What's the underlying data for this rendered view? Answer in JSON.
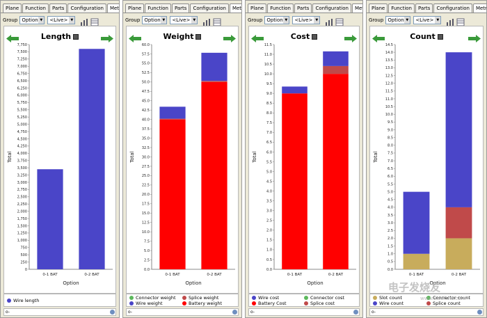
{
  "tabs": [
    "Plane",
    "Function",
    "Parts",
    "Configuration",
    "Metrics"
  ],
  "active_tab": "Metrics",
  "toolbar": {
    "group_label": "Group",
    "group_value": "Option",
    "live_value": "<Live>"
  },
  "search_placeholder": "o-",
  "colors": {
    "blue": "#4a45c8",
    "red": "#ff0000",
    "darkred": "#c04a4a",
    "gold": "#c8ac5c",
    "green": "#5cb85c",
    "accent_green": "#3a9a3a"
  },
  "watermark": "电子发烧友",
  "watermark_sub": "www.elecfans.com",
  "panels": [
    {
      "chart_data": {
        "type": "bar",
        "title": "Length",
        "xlabel": "Option",
        "ylabel": "Total",
        "categories": [
          "0-1 BAT",
          "0-2 BAT"
        ],
        "series": [
          {
            "name": "Wire length",
            "color": "#4a45c8",
            "values": [
              3450,
              7600
            ]
          }
        ],
        "ylim": [
          0,
          7750
        ],
        "ticks": [
          0,
          250,
          500,
          750,
          1000,
          1250,
          1500,
          1750,
          2000,
          2250,
          2500,
          2750,
          3000,
          3250,
          3500,
          3750,
          4000,
          4250,
          4500,
          4750,
          5000,
          5250,
          5500,
          5750,
          6000,
          6250,
          6500,
          6750,
          7000,
          7250,
          7500,
          7750
        ],
        "tick_labels": [
          "0",
          "250",
          "500",
          "750",
          "1,000",
          "1,250",
          "1,500",
          "1,750",
          "2,000",
          "2,250",
          "2,500",
          "2,750",
          "3,000",
          "3,250",
          "3,500",
          "3,750",
          "4,000",
          "4,250",
          "4,500",
          "4,750",
          "5,000",
          "5,250",
          "5,500",
          "5,750",
          "6,000",
          "6,250",
          "6,500",
          "6,750",
          "7,000",
          "7,250",
          "7,500",
          "7,750"
        ]
      },
      "legend": [
        {
          "label": "Wire length",
          "color": "#4a45c8"
        }
      ]
    },
    {
      "chart_data": {
        "type": "bar",
        "title": "Weight",
        "xlabel": "Option",
        "ylabel": "Total",
        "categories": [
          "0-1 BAT",
          "0-2 BAT"
        ],
        "series": [
          {
            "name": "Battery weight",
            "color": "#ff0000",
            "values": [
              40.0,
              50.0
            ]
          },
          {
            "name": "Splice weight",
            "color": "#c04a4a",
            "values": [
              0.2,
              0.3
            ]
          },
          {
            "name": "Connector weight",
            "color": "#5cb85c",
            "values": [
              0.0,
              0.0
            ]
          },
          {
            "name": "Wire weight",
            "color": "#4a45c8",
            "values": [
              3.2,
              7.5
            ]
          }
        ],
        "ylim": [
          0,
          60
        ],
        "ticks": [
          0,
          2.5,
          5,
          7.5,
          10,
          12.5,
          15,
          17.5,
          20,
          22.5,
          25,
          27.5,
          30,
          32.5,
          35,
          37.5,
          40,
          42.5,
          45,
          47.5,
          50,
          52.5,
          55,
          57.5,
          60
        ],
        "tick_labels": [
          "0.0",
          "2.5",
          "5.0",
          "7.5",
          "10.0",
          "12.5",
          "15.0",
          "17.5",
          "20.0",
          "22.5",
          "25.0",
          "27.5",
          "30.0",
          "32.5",
          "35.0",
          "37.5",
          "40.0",
          "42.5",
          "45.0",
          "47.5",
          "50.0",
          "52.5",
          "55.0",
          "57.5",
          "60.0"
        ]
      },
      "legend": [
        {
          "label": "Connector weight",
          "color": "#5cb85c"
        },
        {
          "label": "Splice weight",
          "color": "#c04a4a"
        },
        {
          "label": "Wire weight",
          "color": "#4a45c8"
        },
        {
          "label": "Battery weight",
          "color": "#ff0000"
        }
      ]
    },
    {
      "chart_data": {
        "type": "bar",
        "title": "Cost",
        "xlabel": "Option",
        "ylabel": "Total",
        "categories": [
          "0-1 BAT",
          "0-2 BAT"
        ],
        "series": [
          {
            "name": "Battery Cost",
            "color": "#ff0000",
            "values": [
              9.0,
              10.0
            ]
          },
          {
            "name": "Splice cost",
            "color": "#c04a4a",
            "values": [
              0.0,
              0.4
            ]
          },
          {
            "name": "Connector cost",
            "color": "#5cb85c",
            "values": [
              0.0,
              0.0
            ]
          },
          {
            "name": "Wire cost",
            "color": "#4a45c8",
            "values": [
              0.35,
              0.75
            ]
          }
        ],
        "ylim": [
          0,
          11.5
        ],
        "ticks": [
          0,
          0.5,
          1,
          1.5,
          2,
          2.5,
          3,
          3.5,
          4,
          4.5,
          5,
          5.5,
          6,
          6.5,
          7,
          7.5,
          8,
          8.5,
          9,
          9.5,
          10,
          10.5,
          11,
          11.5
        ],
        "tick_labels": [
          "0.0",
          "0.5",
          "1.0",
          "1.5",
          "2.0",
          "2.5",
          "3.0",
          "3.5",
          "4.0",
          "4.5",
          "5.0",
          "5.5",
          "6.0",
          "6.5",
          "7.0",
          "7.5",
          "8.0",
          "8.5",
          "9.0",
          "9.5",
          "10.0",
          "10.5",
          "11.0",
          "11.5"
        ]
      },
      "legend": [
        {
          "label": "Wire cost",
          "color": "#4a45c8"
        },
        {
          "label": "Connector cost",
          "color": "#5cb85c"
        },
        {
          "label": "Battery Cost",
          "color": "#ff0000"
        },
        {
          "label": "Splice cost",
          "color": "#c04a4a"
        }
      ]
    },
    {
      "chart_data": {
        "type": "bar",
        "title": "Count",
        "xlabel": "Option",
        "ylabel": "Total",
        "categories": [
          "0-1 BAT",
          "0-2 BAT"
        ],
        "series": [
          {
            "name": "Slot count",
            "color": "#c8ac5c",
            "values": [
              1.0,
              2.0
            ]
          },
          {
            "name": "Splice count",
            "color": "#c04a4a",
            "values": [
              0.0,
              2.0
            ]
          },
          {
            "name": "Wire count",
            "color": "#4a45c8",
            "values": [
              4.0,
              10.0
            ]
          }
        ],
        "ylim": [
          0,
          14.5
        ],
        "ticks": [
          0,
          0.5,
          1,
          1.5,
          2,
          2.5,
          3,
          3.5,
          4,
          4.5,
          5,
          5.5,
          6,
          6.5,
          7,
          7.5,
          8,
          8.5,
          9,
          9.5,
          10,
          10.5,
          11,
          11.5,
          12,
          12.5,
          13,
          13.5,
          14,
          14.5
        ],
        "tick_labels": [
          "0.0",
          "0.5",
          "1.0",
          "1.5",
          "2.0",
          "2.5",
          "3.0",
          "3.5",
          "4.0",
          "4.5",
          "5.0",
          "5.5",
          "6.0",
          "6.5",
          "7.0",
          "7.5",
          "8.0",
          "8.5",
          "9.0",
          "9.5",
          "10.0",
          "10.5",
          "11.0",
          "11.5",
          "12.0",
          "12.5",
          "13.0",
          "13.5",
          "14.0",
          "14.5"
        ]
      },
      "legend": [
        {
          "label": "Slot count",
          "color": "#c8ac5c"
        },
        {
          "label": "Connector count",
          "color": "#5cb85c"
        },
        {
          "label": "Wire count",
          "color": "#4a45c8"
        },
        {
          "label": "Splice count",
          "color": "#c04a4a"
        }
      ]
    }
  ]
}
